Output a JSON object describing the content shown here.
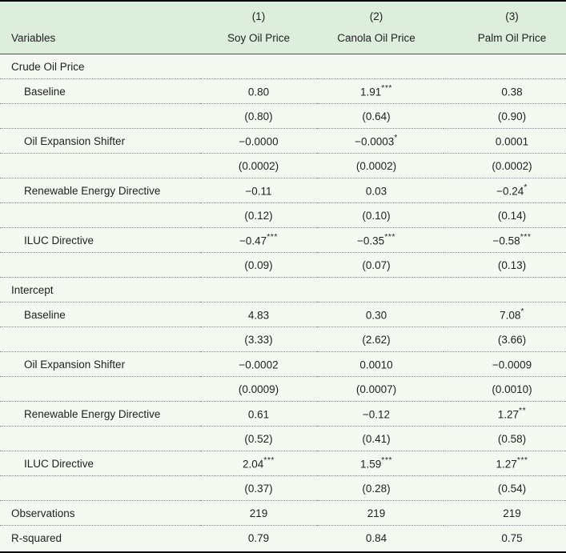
{
  "colors": {
    "header_bg": "#ddeedd",
    "body_bg": "#f4faf2",
    "outer_border": "#000000",
    "header_rule": "#555555",
    "dotted_separator": "#8a8a8a",
    "text": "#1f1f1f"
  },
  "table": {
    "header": {
      "variables_label": "Variables",
      "model_numbers": [
        "(1)",
        "(2)",
        "(3)"
      ],
      "column_names": [
        "Soy Oil Price",
        "Canola Oil Price",
        "Palm Oil Price"
      ]
    },
    "rows": [
      {
        "type": "section",
        "label": "Crude Oil Price"
      },
      {
        "type": "coef",
        "label": "Baseline",
        "cells": [
          {
            "v": "0.80",
            "s": ""
          },
          {
            "v": "1.91",
            "s": "***"
          },
          {
            "v": "0.38",
            "s": ""
          }
        ]
      },
      {
        "type": "se",
        "label": "",
        "cells": [
          {
            "v": "(0.80)",
            "s": ""
          },
          {
            "v": "(0.64)",
            "s": ""
          },
          {
            "v": "(0.90)",
            "s": ""
          }
        ]
      },
      {
        "type": "coef",
        "label": "Oil Expansion Shifter",
        "cells": [
          {
            "v": "−0.0000",
            "s": ""
          },
          {
            "v": "−0.0003",
            "s": "*"
          },
          {
            "v": "0.0001",
            "s": ""
          }
        ]
      },
      {
        "type": "se",
        "label": "",
        "cells": [
          {
            "v": "(0.0002)",
            "s": ""
          },
          {
            "v": "(0.0002)",
            "s": ""
          },
          {
            "v": "(0.0002)",
            "s": ""
          }
        ]
      },
      {
        "type": "coef",
        "label": "Renewable Energy Directive",
        "cells": [
          {
            "v": "−0.11",
            "s": ""
          },
          {
            "v": "0.03",
            "s": ""
          },
          {
            "v": "−0.24",
            "s": "*"
          }
        ]
      },
      {
        "type": "se",
        "label": "",
        "cells": [
          {
            "v": "(0.12)",
            "s": ""
          },
          {
            "v": "(0.10)",
            "s": ""
          },
          {
            "v": "(0.14)",
            "s": ""
          }
        ]
      },
      {
        "type": "coef",
        "label": "ILUC Directive",
        "cells": [
          {
            "v": "−0.47",
            "s": "***"
          },
          {
            "v": "−0.35",
            "s": "***"
          },
          {
            "v": "−0.58",
            "s": "***"
          }
        ]
      },
      {
        "type": "se",
        "label": "",
        "cells": [
          {
            "v": "(0.09)",
            "s": ""
          },
          {
            "v": "(0.07)",
            "s": ""
          },
          {
            "v": "(0.13)",
            "s": ""
          }
        ]
      },
      {
        "type": "section",
        "label": "Intercept"
      },
      {
        "type": "coef",
        "label": "Baseline",
        "cells": [
          {
            "v": "4.83",
            "s": ""
          },
          {
            "v": "0.30",
            "s": ""
          },
          {
            "v": "7.08",
            "s": "*"
          }
        ]
      },
      {
        "type": "se",
        "label": "",
        "cells": [
          {
            "v": "(3.33)",
            "s": ""
          },
          {
            "v": "(2.62)",
            "s": ""
          },
          {
            "v": "(3.66)",
            "s": ""
          }
        ]
      },
      {
        "type": "coef",
        "label": "Oil Expansion Shifter",
        "cells": [
          {
            "v": "−0.0002",
            "s": ""
          },
          {
            "v": "0.0010",
            "s": ""
          },
          {
            "v": "−0.0009",
            "s": ""
          }
        ]
      },
      {
        "type": "se",
        "label": "",
        "cells": [
          {
            "v": "(0.0009)",
            "s": ""
          },
          {
            "v": "(0.0007)",
            "s": ""
          },
          {
            "v": "(0.0010)",
            "s": ""
          }
        ]
      },
      {
        "type": "coef",
        "label": "Renewable Energy Directive",
        "cells": [
          {
            "v": "0.61",
            "s": ""
          },
          {
            "v": "−0.12",
            "s": ""
          },
          {
            "v": "1.27",
            "s": "**"
          }
        ]
      },
      {
        "type": "se",
        "label": "",
        "cells": [
          {
            "v": "(0.52)",
            "s": ""
          },
          {
            "v": "(0.41)",
            "s": ""
          },
          {
            "v": "(0.58)",
            "s": ""
          }
        ]
      },
      {
        "type": "coef",
        "label": "ILUC Directive",
        "cells": [
          {
            "v": "2.04",
            "s": "***"
          },
          {
            "v": "1.59",
            "s": "***"
          },
          {
            "v": "1.27",
            "s": "***"
          }
        ]
      },
      {
        "type": "se",
        "label": "",
        "cells": [
          {
            "v": "(0.37)",
            "s": ""
          },
          {
            "v": "(0.28)",
            "s": ""
          },
          {
            "v": "(0.54)",
            "s": ""
          }
        ]
      },
      {
        "type": "stat",
        "label": "Observations",
        "cells": [
          {
            "v": "219",
            "s": ""
          },
          {
            "v": "219",
            "s": ""
          },
          {
            "v": "219",
            "s": ""
          }
        ]
      },
      {
        "type": "stat",
        "label": "R-squared",
        "cells": [
          {
            "v": "0.79",
            "s": ""
          },
          {
            "v": "0.84",
            "s": ""
          },
          {
            "v": "0.75",
            "s": ""
          }
        ]
      }
    ]
  }
}
